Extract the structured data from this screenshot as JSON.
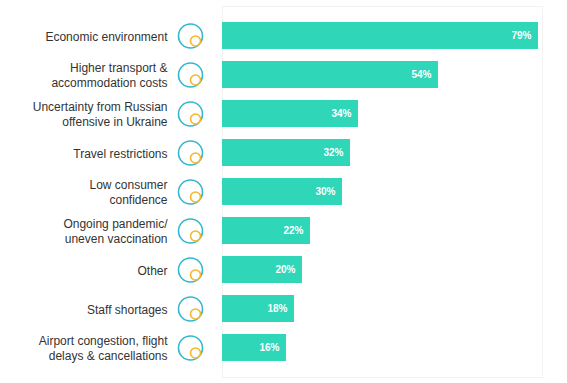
{
  "chart_data": {
    "type": "bar",
    "orientation": "horizontal",
    "categories": [
      "Economic environment",
      "Higher transport & accommodation costs",
      "Uncertainty from Russian offensive in Ukraine",
      "Travel restrictions",
      "Low consumer confidence",
      "Ongoing pandemic/uneven vaccination",
      "Other",
      "Staff shortages",
      "Airport congestion, flight delays & cancellations"
    ],
    "values": [
      79,
      54,
      34,
      32,
      30,
      22,
      20,
      18,
      16
    ],
    "value_labels": [
      "79%",
      "54%",
      "34%",
      "32%",
      "30%",
      "22%",
      "20%",
      "18%",
      "16%"
    ],
    "data_labels": true,
    "tick_labels": "y",
    "grid": false,
    "color": "#2fd6b8",
    "xlim": [
      0,
      80
    ]
  }
}
